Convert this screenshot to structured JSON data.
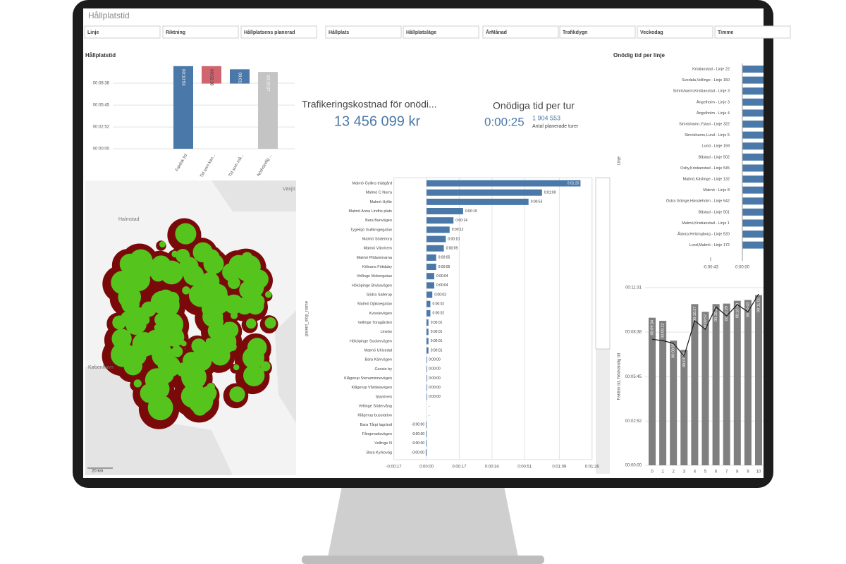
{
  "header": {
    "title": "Hållplatstid"
  },
  "filters": [
    "Linje",
    "Riktning",
    "Hållplatsens planerad",
    "Hållplats",
    "Hållplatsläge",
    "ÅrMånad",
    "Trafikdygn",
    "Veckodag",
    "Timme"
  ],
  "kpis": [
    {
      "title": "Trafikeringskostnad för onödi...",
      "value": "13 456 099 kr"
    },
    {
      "title": "Onödiga tid per tur",
      "value": "0:00:25",
      "sub_value": "1 904 553",
      "sub_label": "Antal planerade turer"
    }
  ],
  "map": {
    "labels": [
      "Halmstad",
      "Växjö",
      "København"
    ],
    "scale": "20 km"
  },
  "chart_data": [
    {
      "type": "waterfall",
      "title": "Hållplatstid",
      "categories": [
        "Faktisk tid",
        "Tid som kan...",
        "Tid som må...",
        "Nödvändig ..."
      ],
      "values": [
        653,
        -138,
        113,
        607
      ],
      "value_labels": [
        "00:10:53",
        "00:02:18",
        "00:01:53",
        "00:10:07"
      ],
      "totals": [
        true,
        false,
        false,
        true
      ],
      "colors": [
        "#4a78a8",
        "#d0646f",
        "#4a78a8",
        "#c4c4c4"
      ],
      "ylim": [
        0,
        691
      ],
      "yticks": [
        {
          "value": 0,
          "label": "00:00:00"
        },
        {
          "value": 172,
          "label": "00:02:52"
        },
        {
          "value": 345,
          "label": "00:05:45"
        },
        {
          "value": 518,
          "label": "00:08:38"
        }
      ],
      "grid": true
    },
    {
      "type": "hbar",
      "y_label": "parent_stop_name",
      "color": "#4a78a8",
      "categories": [
        "Malmö Gyllins trädgård",
        "Malmö C Norra",
        "Malmö Hyllie",
        "Malmö Anna Lindhs plats",
        "Bara Banvägen",
        "Tygelsjö Gullkrogegatan",
        "Malmö Södertorp",
        "Malmö Värnhem",
        "Malmö Pildammarna",
        "Kölnans Fritidsby",
        "Vellinge Mobergatan",
        "Hököpinge Brukavägen",
        "Södra Sallerup",
        "Malmö Djäknegatan",
        "Kvisslevägen",
        "Vellinge Toragården",
        "Linebo",
        "Hököpinge Sockervägen",
        "Malmö Ulricedal",
        "Bara Kärrvägen",
        "Gessie by",
        "Klågerup Stenaminnevägen",
        "Klågerup Vårdalavägen",
        "Stamhem",
        "Vellinge Södervång",
        "Klågerup busstation",
        "Bara Tårpi lagränd",
        "Fångevadsvägen",
        "Vellinge N",
        "Bara Kyrkoväg"
      ],
      "values": [
        80,
        60,
        53,
        19,
        14,
        12,
        10,
        9,
        5,
        5,
        4,
        4,
        3,
        2,
        2,
        1,
        1,
        1,
        1,
        0,
        0,
        0,
        0,
        0,
        null,
        null,
        -0.3,
        -0.3,
        -0.3,
        -0.4
      ],
      "value_labels": [
        "0:01:20",
        "0:01:00",
        "0:00:53",
        "0:00:19",
        "0:00:14",
        "0:00:12",
        "0:00:10",
        "0:00:09",
        "0:00:05",
        "0:00:05",
        "0:00:04",
        "0:00:04",
        "0:00:03",
        "0:00:02",
        "0:00:02",
        "0:00:01",
        "0:00:01",
        "0:00:01",
        "0:00:01",
        "0:00:00",
        "0:00:00",
        "0:00:00",
        "0:00:00",
        "0:00:00",
        "-",
        "-",
        "-0:00:00",
        "-0:00:00",
        "-0:00:00",
        "-0:00:00"
      ],
      "xlim": [
        -17,
        86
      ],
      "xticks": [
        {
          "value": -17,
          "label": "-0:00:17"
        },
        {
          "value": 0,
          "label": "0:00:00"
        },
        {
          "value": 17,
          "label": "0:00:17"
        },
        {
          "value": 34,
          "label": "0:00:34"
        },
        {
          "value": 51,
          "label": "0:00:51"
        },
        {
          "value": 69,
          "label": "0:01:09"
        },
        {
          "value": 86,
          "label": "0:01:26"
        }
      ],
      "grid": true
    },
    {
      "type": "hbar_lines",
      "title": "Onödig tid per linje",
      "y_label": "Linje",
      "color": "#4a78a8",
      "categories": [
        "Kristianstad - Linje 22",
        "Svedala,Vellinge - Linje 150",
        "Simrishamn,Kristianstad - Linje 3",
        "Ängelholm - Linje 3",
        "Ängelholm - Linje 4",
        "Simrishamn,Ystad - Linje 322",
        "Simrishamn,Lund - Linje 5",
        "Lund - Linje 159",
        "Båstad - Linje 502",
        "Osby,Kristianstad - Linje 545",
        "Malmö,Kävlinge - Linje 132",
        "Malmö - Linje 8",
        "Östra Göinge,Hässleholm - Linje 542",
        "Båstad - Linje 501",
        "Malmö,Kristianstad - Linje 1",
        "Åstorp,Helsingborg - Linje 520",
        "Lund,Malmö - Linje 172"
      ],
      "values": [
        40,
        40,
        40,
        40,
        40,
        40,
        40,
        40,
        40,
        40,
        40,
        40,
        40,
        40,
        40,
        40,
        40
      ],
      "xlim": [
        -48,
        29
      ],
      "xticks": [
        {
          "value": -43,
          "label": "-0:00:43"
        },
        {
          "value": 0,
          "label": "0:00:00"
        }
      ]
    },
    {
      "type": "combo",
      "y_label": "Faktisk tid, Nödvändig tid",
      "categories": [
        "0",
        "1",
        "2",
        "3",
        "4",
        "5",
        "6",
        "7",
        "8",
        "9",
        "10"
      ],
      "series": [
        {
          "kind": "bar",
          "color": "#7f7f7f",
          "values": [
            574,
            562,
            485,
            449,
            627,
            597,
            627,
            629,
            640,
            643,
            662
          ],
          "value_labels": [
            "00:09:34",
            "00:09:22",
            "00:08:05",
            "00:07:29",
            "00:10:27",
            "00:09:57",
            "00:10:27",
            "00:10:29",
            "00:10:40",
            "00:10:43",
            "00:11:02"
          ]
        },
        {
          "kind": "line",
          "color": "#1a1a1a",
          "values": [
            490,
            485,
            474,
            425,
            562,
            529,
            616,
            581,
            625,
            597,
            666
          ]
        }
      ],
      "ylim": [
        0,
        691
      ],
      "yticks": [
        {
          "value": 0,
          "label": "00:00:00"
        },
        {
          "value": 172,
          "label": "00:02:52"
        },
        {
          "value": 345,
          "label": "00:05:45"
        },
        {
          "value": 518,
          "label": "00:08:38"
        },
        {
          "value": 691,
          "label": "00:11:31"
        }
      ],
      "grid": true
    }
  ]
}
